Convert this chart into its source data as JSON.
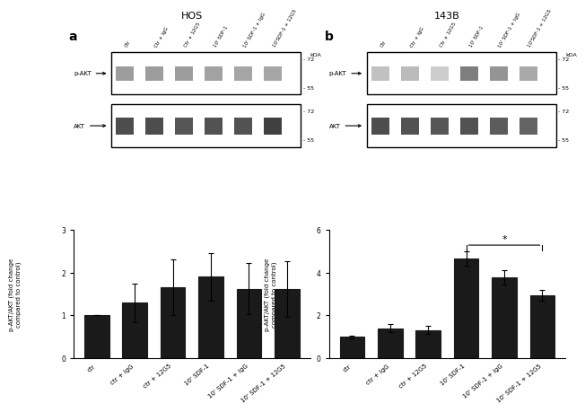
{
  "title_a": "HOS",
  "title_b": "143B",
  "panel_label_a": "a",
  "panel_label_b": "b",
  "categories": [
    "ctr",
    "ctr + IgG",
    "ctr + 12G5",
    "10' SDF-1",
    "10' SDF-1 + IgG",
    "10' SDF-1 + 12G5"
  ],
  "wb_labels_top": [
    "Ctr",
    "Ctr + IgG",
    "Ctr + 12G5",
    "10' SDF-1",
    "10' SDF-1 + IgG",
    "10'SDF-1 + 12G5"
  ],
  "values_a": [
    1.0,
    1.3,
    1.65,
    1.9,
    1.62,
    1.62
  ],
  "errors_a": [
    0.0,
    0.45,
    0.65,
    0.55,
    0.6,
    0.65
  ],
  "values_b": [
    1.0,
    1.4,
    1.32,
    4.65,
    3.78,
    2.95
  ],
  "errors_b": [
    0.05,
    0.18,
    0.2,
    0.35,
    0.32,
    0.25
  ],
  "ylabel": "p-AKT/AKT (fold change\ncompared to control)",
  "ylim_a": [
    0,
    3
  ],
  "ylim_b": [
    0,
    6
  ],
  "yticks_a": [
    0,
    1,
    2,
    3
  ],
  "yticks_b": [
    0,
    2,
    4,
    6
  ],
  "bar_color": "#1a1a1a",
  "bar_edge_color": "#1a1a1a",
  "background_color": "#ffffff",
  "kda_labels": [
    "72",
    "55"
  ],
  "wb_row_labels": [
    "p-AKT",
    "AKT"
  ],
  "significance_bars_b": [
    [
      3,
      5,
      "*"
    ]
  ],
  "fig_width": 5.71,
  "fig_height": 3.93
}
